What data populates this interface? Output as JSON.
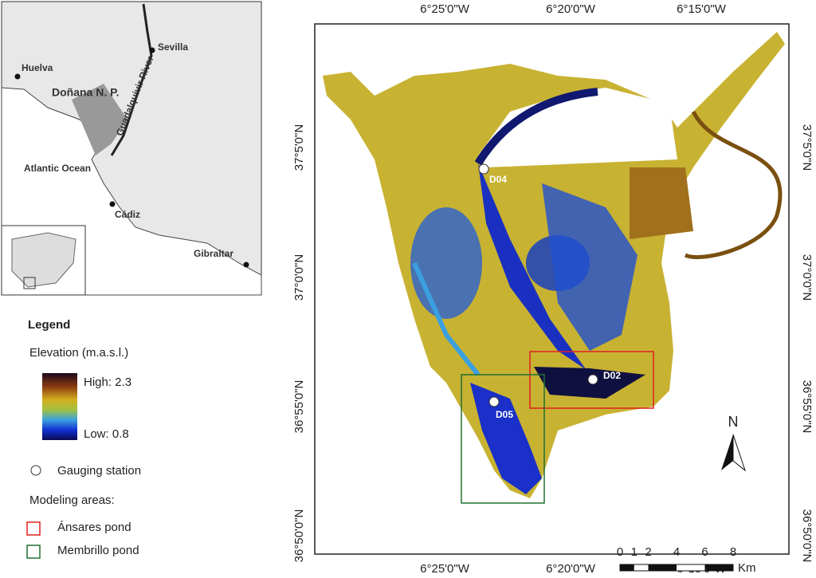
{
  "inset": {
    "labels": [
      "Sevilla",
      "Huelva",
      "Doñana N. P.",
      "Guadalquivir River",
      "Atlantic Ocean",
      "Cádiz",
      "Gibraltar"
    ]
  },
  "legend": {
    "title": "Legend",
    "elevation": "Elevation (m.a.s.l.)",
    "high": "High: 2.3",
    "low": "Low: 0.8",
    "station": "Gauging station",
    "areas": "Modeling areas:",
    "area_items": [
      "Ánsares pond",
      "Membrillo pond"
    ]
  },
  "map": {
    "stations": [
      "D04",
      "D02",
      "D05"
    ],
    "lon_labels": [
      "6°25'0\"W",
      "6°20'0\"W",
      "6°15'0\"W"
    ],
    "lat_labels": [
      "37°5'0\"N",
      "37°0'0\"N",
      "36°55'0\"N",
      "36°50'0\"N"
    ],
    "north": "N"
  },
  "scale_bar": {
    "ticks": [
      0,
      1,
      2,
      4,
      6,
      8
    ],
    "unit": "Km"
  }
}
